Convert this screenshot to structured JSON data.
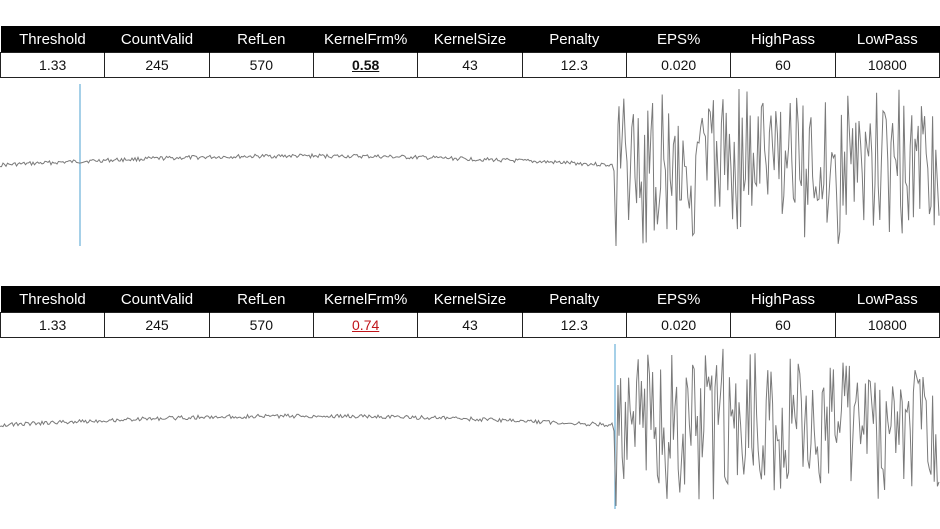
{
  "columns": [
    "Threshold",
    "CountValid",
    "RefLen",
    "KernelFrm%",
    "KernelSize",
    "Penalty",
    "EPS%",
    "HighPass",
    "LowPass"
  ],
  "panels": [
    {
      "values": [
        "1.33",
        "245",
        "570",
        "0.58",
        "43",
        "12.3",
        "0.020",
        "60",
        "10800"
      ],
      "highlight_index": 3,
      "highlight_color": "#111111",
      "cursor_color": "#6ab0d8"
    },
    {
      "values": [
        "1.33",
        "245",
        "570",
        "0.74",
        "43",
        "12.3",
        "0.020",
        "60",
        "10800"
      ],
      "highlight_index": 3,
      "highlight_color": "#c0141a",
      "cursor_color": "#6ab0d8"
    }
  ],
  "waveform_color": "#7a7a7a"
}
